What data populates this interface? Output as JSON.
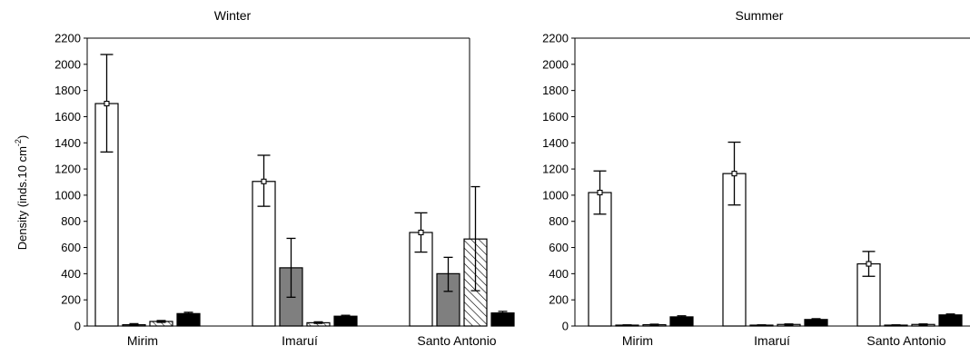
{
  "colors": {
    "empty": "#ffffff",
    "gray": "#7f7f7f",
    "black": "#000000",
    "stroke": "#000000"
  },
  "ylabel": {
    "main": "Density (inds.10 cm",
    "sup": "-2",
    "close": ")"
  },
  "chart_data": [
    {
      "type": "bar",
      "title": "Winter",
      "categories": [
        "Mirim",
        "Imaruí",
        "Santo Antonio"
      ],
      "ylabel": "Density (inds.10 cm-2)",
      "ylim": [
        0,
        2200
      ],
      "yticks": [
        0,
        200,
        400,
        600,
        800,
        1000,
        1200,
        1400,
        1600,
        1800,
        2000,
        2200
      ],
      "grid": false,
      "series": [
        {
          "fill": "white",
          "values": [
            1700,
            1105,
            715
          ],
          "err_low": [
            1330,
            915,
            565
          ],
          "err_high": [
            2075,
            1305,
            865
          ],
          "marker": true
        },
        {
          "fill": "gray",
          "values": [
            10,
            445,
            400
          ],
          "err_low": [
            5,
            220,
            265
          ],
          "err_high": [
            18,
            670,
            525
          ],
          "marker": false
        },
        {
          "fill": "hatch",
          "values": [
            35,
            25,
            665
          ],
          "err_low": [
            28,
            20,
            270
          ],
          "err_high": [
            42,
            32,
            1065
          ],
          "marker": false
        },
        {
          "fill": "black",
          "values": [
            95,
            75,
            100
          ],
          "err_low": [
            85,
            68,
            90
          ],
          "err_high": [
            105,
            82,
            112
          ],
          "marker": false
        }
      ]
    },
    {
      "type": "bar",
      "title": "Summer",
      "categories": [
        "Mirim",
        "Imaruí",
        "Santo Antonio"
      ],
      "ylabel": "",
      "ylim": [
        0,
        2200
      ],
      "yticks": [
        0,
        200,
        400,
        600,
        800,
        1000,
        1200,
        1400,
        1600,
        1800,
        2000,
        2200
      ],
      "grid": false,
      "series": [
        {
          "fill": "white",
          "values": [
            1020,
            1165,
            475
          ],
          "err_low": [
            855,
            925,
            380
          ],
          "err_high": [
            1185,
            1405,
            570
          ],
          "marker": true
        },
        {
          "fill": "white",
          "values": [
            5,
            5,
            5
          ],
          "err_low": [
            2,
            2,
            2
          ],
          "err_high": [
            9,
            9,
            9
          ],
          "marker": false
        },
        {
          "fill": "white",
          "values": [
            10,
            12,
            12
          ],
          "err_low": [
            6,
            8,
            8
          ],
          "err_high": [
            14,
            16,
            16
          ],
          "marker": false
        },
        {
          "fill": "black",
          "values": [
            70,
            50,
            85
          ],
          "err_low": [
            62,
            44,
            78
          ],
          "err_high": [
            78,
            56,
            92
          ],
          "marker": false
        }
      ]
    }
  ]
}
